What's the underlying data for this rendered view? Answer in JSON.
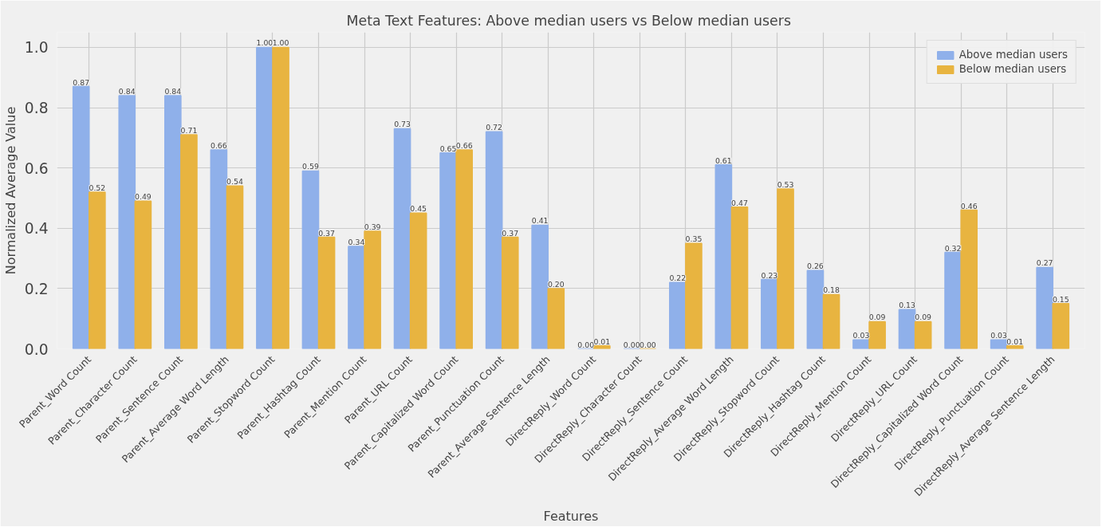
{
  "chart_data": {
    "type": "bar",
    "title": "Meta Text  Features: Above median users vs Below median users",
    "xlabel": "Features",
    "ylabel": "Normalized Average Value",
    "categories": [
      "Parent_Word Count",
      "Parent_Character Count",
      "Parent_Sentence Count",
      "Parent_Average Word Length",
      "Parent_Stopword Count",
      "Parent_Hashtag Count",
      "Parent_Mention Count",
      "Parent_URL Count",
      "Parent_Capitalized Word Count",
      "Parent_Punctuation Count",
      "Parent_Average Sentence Length",
      "DirectReply_Word Count",
      "DirectReply_Character Count",
      "DirectReply_Sentence Count",
      "DirectReply_Average Word Length",
      "DirectReply_Stopword Count",
      "DirectReply_Hashtag Count",
      "DirectReply_Mention Count",
      "DirectReply_URL Count",
      "DirectReply_Capitalized Word Count",
      "DirectReply_Punctuation Count",
      "DirectReply_Average Sentence Length"
    ],
    "series": [
      {
        "name": "Above median users",
        "color": "#8fb0ea",
        "values": [
          0.87,
          0.84,
          0.84,
          0.66,
          1.0,
          0.59,
          0.34,
          0.73,
          0.65,
          0.72,
          0.41,
          0.0,
          0.0,
          0.22,
          0.61,
          0.23,
          0.26,
          0.03,
          0.13,
          0.32,
          0.03,
          0.27
        ],
        "value_labels": [
          "0.87",
          "0.84",
          "0.84",
          "0.66",
          "1.00",
          "0.59",
          "0.34",
          "0.73",
          "0.65",
          "0.72",
          "0.41",
          "0.00",
          "0.00",
          "0.22",
          "0.61",
          "0.23",
          "0.26",
          "0.03",
          "0.13",
          "0.32",
          "0.03",
          "0.27"
        ]
      },
      {
        "name": "Below median users",
        "color": "#e8b440",
        "values": [
          0.52,
          0.49,
          0.71,
          0.54,
          1.0,
          0.37,
          0.39,
          0.45,
          0.66,
          0.37,
          0.2,
          0.01,
          0.0,
          0.35,
          0.47,
          0.53,
          0.18,
          0.09,
          0.09,
          0.46,
          0.01,
          0.15
        ],
        "value_labels": [
          "0.52",
          "0.49",
          "0.71",
          "0.54",
          "1.00",
          "0.37",
          "0.39",
          "0.45",
          "0.66",
          "0.37",
          "0.20",
          "0.01",
          "0.00",
          "0.35",
          "0.47",
          "0.53",
          "0.18",
          "0.09",
          "0.09",
          "0.46",
          "0.01",
          "0.15"
        ]
      }
    ],
    "ylim": [
      0,
      1.05
    ],
    "yticks": [
      {
        "value": 0,
        "label": "0.0"
      },
      {
        "value": 0.2,
        "label": "0.2"
      },
      {
        "value": 0.4,
        "label": "0.4"
      },
      {
        "value": 0.6,
        "label": "0.6"
      },
      {
        "value": 0.8,
        "label": "0.8"
      },
      {
        "value": 1.0,
        "label": "1.0"
      }
    ],
    "grid": true,
    "legend": "top right"
  }
}
